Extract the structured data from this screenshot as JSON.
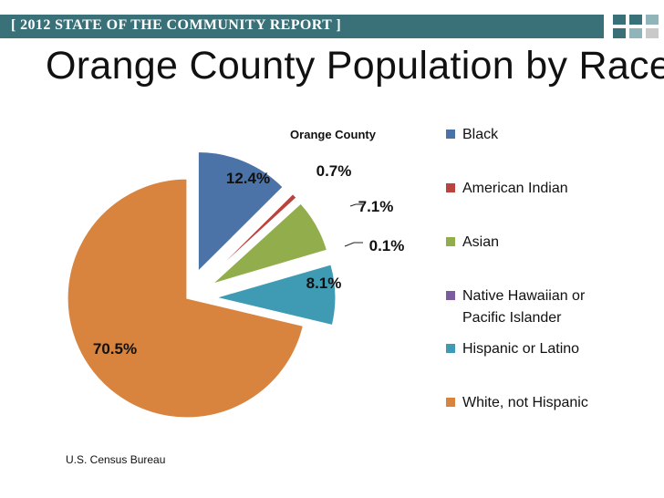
{
  "header": {
    "banner_text": "[ 2012 STATE OF THE COMMUNITY REPORT ]",
    "banner_color": "#3a7179",
    "square_colors": [
      "#3a7179",
      "#8fb4ba",
      "#c9c9c9"
    ]
  },
  "page": {
    "title": "Orange County Population by Race",
    "source": "U.S. Census Bureau"
  },
  "chart_data": {
    "type": "pie",
    "title": "Orange County",
    "legend_position": "right",
    "slices": [
      {
        "name": "Black",
        "value": 12.4,
        "label": "12.4%",
        "color": "#4b73a8",
        "exploded": true
      },
      {
        "name": "American Indian",
        "value": 0.7,
        "label": "0.7%",
        "color": "#b9433f",
        "exploded": true
      },
      {
        "name": "Asian",
        "value": 7.1,
        "label": "7.1%",
        "color": "#92ae4c",
        "exploded": true
      },
      {
        "name": "Native Hawaiian or Pacific Islander",
        "value": 0.1,
        "label": "0.1%",
        "color": "#7b5c9e",
        "exploded": true
      },
      {
        "name": "Hispanic or Latino",
        "value": 8.1,
        "label": "8.1%",
        "color": "#3f9bb3",
        "exploded": true
      },
      {
        "name": "White, not Hispanic",
        "value": 70.5,
        "label": "70.5%",
        "color": "#d9843e",
        "exploded": false
      }
    ],
    "legend": [
      {
        "text": "Black",
        "color": "#4b73a8"
      },
      {
        "text": "American Indian",
        "color": "#b9433f"
      },
      {
        "text": "Asian",
        "color": "#92ae4c"
      },
      {
        "text": "Native Hawaiian or",
        "text2": "Pacific Islander",
        "color": "#7b5c9e"
      },
      {
        "text": "Hispanic or Latino",
        "color": "#3f9bb3"
      },
      {
        "text": "White, not Hispanic",
        "color": "#d9843e"
      }
    ]
  }
}
